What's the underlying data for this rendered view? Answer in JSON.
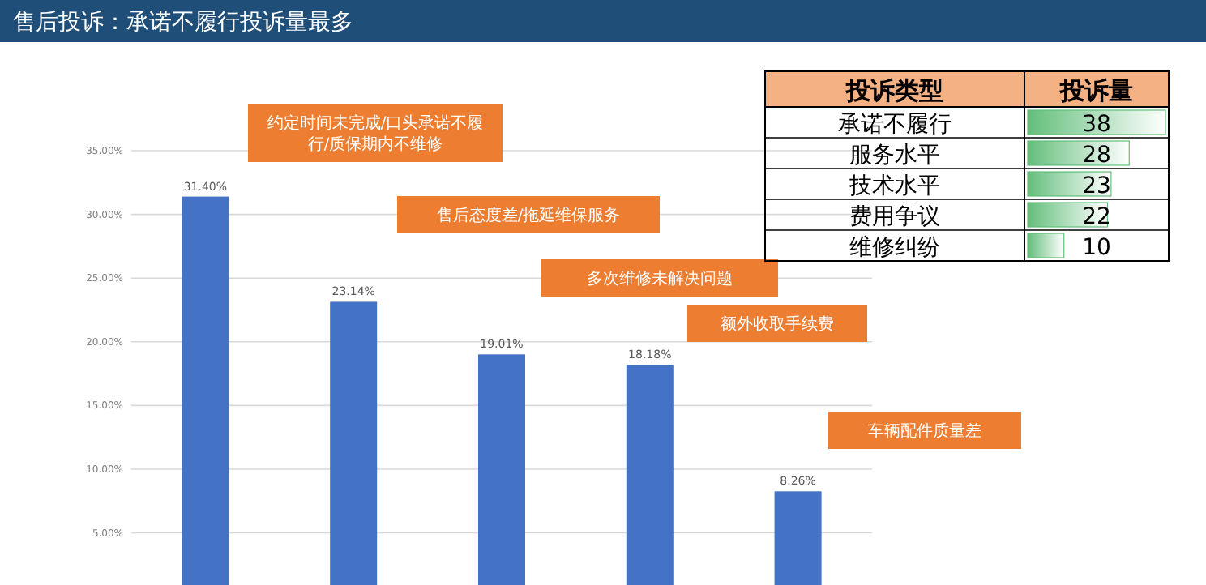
{
  "chart_data": [
    {
      "type": "bar",
      "title": "售后投诉：承诺不履行投诉量最多",
      "categories": [
        null,
        null,
        null,
        null,
        null
      ],
      "series": [
        {
          "color": "#4472c4",
          "values": [
            31.4,
            23.14,
            19.01,
            18.18,
            8.26
          ]
        }
      ],
      "value_labels": [
        "31.40%",
        "23.14%",
        "19.01%",
        "18.18%",
        "8.26%"
      ],
      "ylim": [
        0.9,
        35
      ],
      "yticks": [
        {
          "value": 5,
          "label": "5.00%"
        },
        {
          "value": 10,
          "label": "10.00%"
        },
        {
          "value": 15,
          "label": "15.00%"
        },
        {
          "value": 20,
          "label": "20.00%"
        },
        {
          "value": 25,
          "label": "25.00%"
        },
        {
          "value": 30,
          "label": "30.00%"
        },
        {
          "value": 35,
          "label": "35.00%"
        }
      ],
      "grid": "y",
      "annotations": [
        "约定时间未完成/口头承诺不履行/质保期内不维修",
        "售后态度差/拖延维保服务",
        "多次维修未解决问题",
        "额外收取手续费",
        "车辆配件质量差"
      ]
    },
    {
      "type": "bar",
      "orientation": "horizontal",
      "ylabel": "投诉类型",
      "xlabel": "投诉量",
      "categories": [
        "承诺不履行",
        "服务水平",
        "技术水平",
        "费用争议",
        "维修纠纷"
      ],
      "series": [
        {
          "color": "#63be7b",
          "values": [
            38,
            28,
            23,
            22,
            10
          ]
        }
      ],
      "xlim": [
        0,
        38
      ],
      "data_labels": true
    }
  ]
}
